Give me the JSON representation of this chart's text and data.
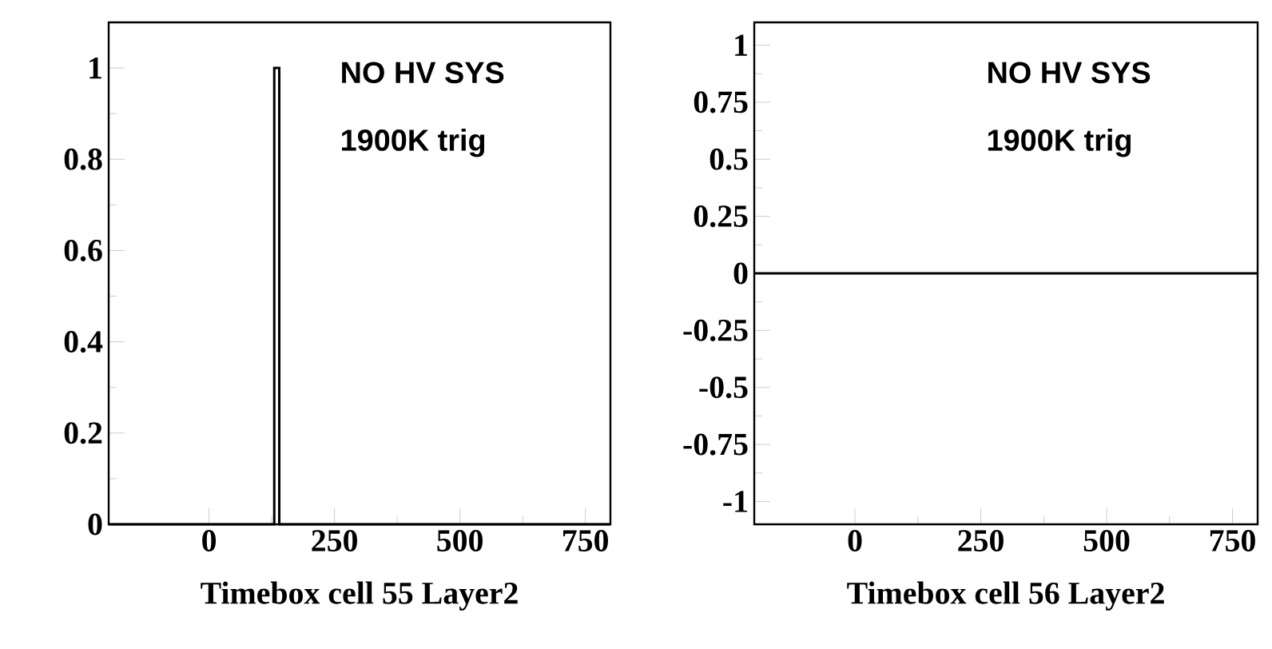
{
  "chart_data": [
    {
      "type": "histogram",
      "bins": [
        -200,
        130,
        140,
        800
      ],
      "values": [
        0,
        1,
        0
      ],
      "color": "#000000",
      "xlim": [
        -200,
        800
      ],
      "ylim": [
        0,
        1.1
      ],
      "xticks": [
        0,
        250,
        500,
        750
      ],
      "yticks": [
        0,
        0.2,
        0.4,
        0.6,
        0.8,
        1
      ],
      "xlabel": "Timebox  cell 55 Layer2",
      "annotations": [
        "NO HV SYS",
        "1900K trig"
      ]
    },
    {
      "type": "line",
      "x": [
        -200,
        800
      ],
      "values": [
        0,
        0
      ],
      "color": "#000000",
      "xlim": [
        -200,
        800
      ],
      "ylim": [
        -1.1,
        1.1
      ],
      "xticks": [
        0,
        250,
        500,
        750
      ],
      "yticks": [
        -1,
        -0.75,
        -0.5,
        -0.25,
        0,
        0.25,
        0.5,
        0.75,
        1
      ],
      "xlabel": "Timebox  cell 56 Layer2",
      "annotations": [
        "NO HV SYS",
        "1900K trig"
      ]
    }
  ]
}
